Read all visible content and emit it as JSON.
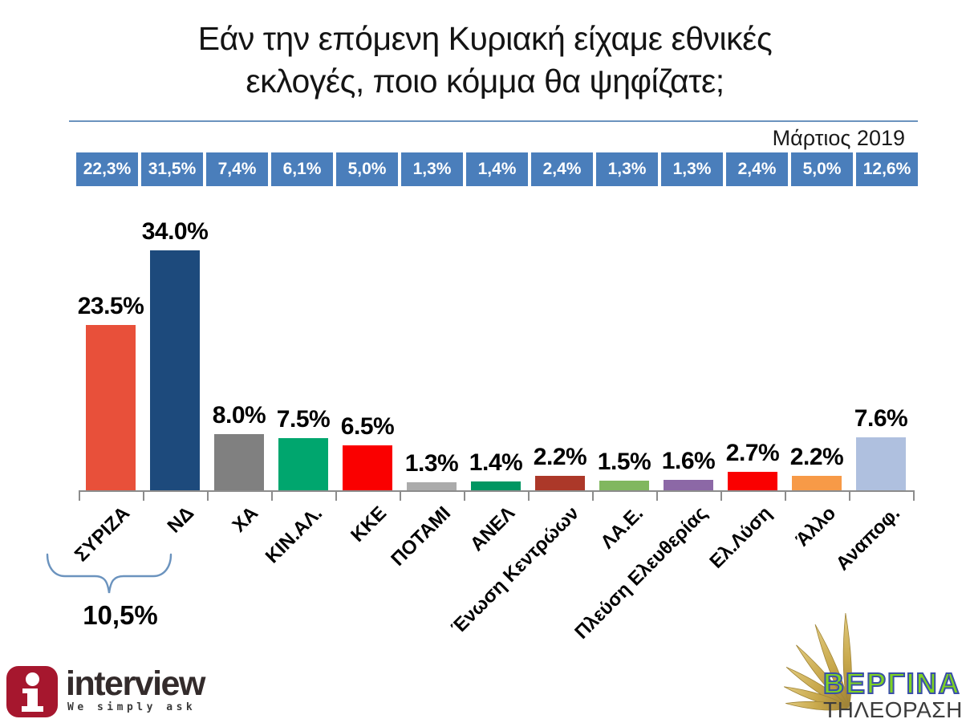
{
  "title": {
    "line1": "Εάν την επόμενη Κυριακή είχαμε εθνικές",
    "line2": "εκλογές, ποιο κόμμα θα ψηφίζατε;"
  },
  "date_label": "Μάρτιος 2019",
  "chart_data": {
    "type": "bar",
    "title": "Εάν την επόμενη Κυριακή είχαμε εθνικές εκλογές, ποιο κόμμα θα ψηφίζατε;",
    "period_label": "Μάρτιος 2019",
    "categories": [
      "ΣΥΡΙΖΑ",
      "ΝΔ",
      "ΧΑ",
      "ΚΙΝ.ΑΛ.",
      "ΚΚΕ",
      "ΠΟΤΑΜΙ",
      "ΑΝΕΛ",
      "Ένωση Κεντρώων",
      "ΛΑ.Ε.",
      "Πλεύση Ελευθερίας",
      "Ελ.Λύση",
      "Άλλο",
      "Αναποφ."
    ],
    "series": [
      {
        "name": "header-row-values",
        "values": [
          22.3,
          31.5,
          7.4,
          6.1,
          5.0,
          1.3,
          1.4,
          2.4,
          1.3,
          1.3,
          2.4,
          5.0,
          12.6
        ],
        "labels": [
          "22,3%",
          "31,5%",
          "7,4%",
          "6,1%",
          "5,0%",
          "1,3%",
          "1,4%",
          "2,4%",
          "1,3%",
          "1,3%",
          "2,4%",
          "5,0%",
          "12,6%"
        ]
      },
      {
        "name": "bar-values",
        "values": [
          23.5,
          34.0,
          8.0,
          7.5,
          6.5,
          1.3,
          1.4,
          2.2,
          1.5,
          1.6,
          2.7,
          2.2,
          7.6
        ],
        "labels": [
          "23.5%",
          "34.0%",
          "8.0%",
          "7.5%",
          "6.5%",
          "1.3%",
          "1.4%",
          "2.2%",
          "1.5%",
          "1.6%",
          "2.7%",
          "2.2%",
          "7.6%"
        ]
      }
    ],
    "bar_colors": [
      "#E8503A",
      "#1D4A7C",
      "#808080",
      "#00A66E",
      "#FA0000",
      "#ABABAB",
      "#009662",
      "#AC3829",
      "#81B75F",
      "#8C68A6",
      "#FA0000",
      "#F79A47",
      "#AFC0DF"
    ],
    "ylim": [
      0,
      36
    ],
    "grid": false,
    "legend": "none",
    "annotation": {
      "grouped_categories": [
        "ΣΥΡΙΖΑ",
        "ΝΔ"
      ],
      "label": "10,5%"
    }
  },
  "footer": {
    "interview": {
      "brand": "interview",
      "tagline": "We simply ask",
      "icon_letter": "i"
    },
    "vergina": {
      "brand": "ΒΕΡΓΙΝΑ",
      "subtitle": "ΤΗΛΕΟΡΑΣΗ"
    }
  },
  "colors": {
    "header_box_blue": "#4A7EBB",
    "separator_blue": "#6B93BE",
    "axis_gray": "#8C8C8C",
    "brace_blue": "#6B93BE",
    "interview_red": "#A6172E",
    "vergina_green": "#7ED321",
    "vergina_outline_blue": "#3A50A8",
    "vergina_gold": "#C8A84B"
  }
}
